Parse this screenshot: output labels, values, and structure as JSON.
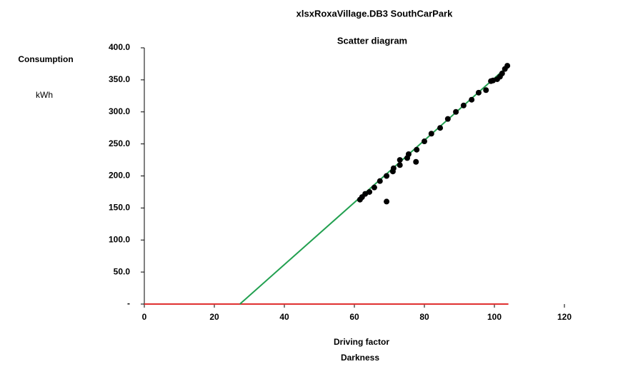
{
  "chart_data": {
    "type": "scatter",
    "title": "xlsxRoxaVillage.DB3 SouthCarPark",
    "subtitle": "Scatter diagram",
    "y_label": "Consumption",
    "y_unit": "kWh",
    "x_label": "Driving factor",
    "x_sublabel": "Darkness",
    "xlim": [
      0,
      120
    ],
    "xticks": [
      0,
      20,
      40,
      60,
      80,
      100,
      120
    ],
    "ylim": [
      0,
      400
    ],
    "yticks": [
      {
        "value": 0,
        "label": "-"
      },
      {
        "value": 50,
        "label": "50.0"
      },
      {
        "value": 100,
        "label": "100.0"
      },
      {
        "value": 150,
        "label": "150.0"
      },
      {
        "value": 200,
        "label": "200.0"
      },
      {
        "value": 250,
        "label": "250.0"
      },
      {
        "value": 300,
        "label": "300.0"
      },
      {
        "value": 350,
        "label": "350.0"
      },
      {
        "value": 400,
        "label": "400.0"
      }
    ],
    "color": "#000000",
    "x": [
      103.7,
      103,
      102.2,
      101.6,
      100.8,
      99.6,
      99,
      97.6,
      95.5,
      93.5,
      91.2,
      89,
      86.7,
      84.5,
      82,
      80,
      77.8,
      77.6,
      75.5,
      75.1,
      73,
      73,
      71.2,
      71,
      69.2,
      69.2,
      67.3,
      65.7,
      64.3,
      63.1,
      62.2,
      61.6
    ],
    "y": [
      372,
      367,
      360,
      355,
      351,
      349,
      348,
      334,
      330,
      319,
      310,
      300,
      289,
      275,
      266,
      254,
      241,
      222,
      234,
      228,
      225,
      217,
      212,
      207,
      200,
      160,
      192,
      182,
      175,
      172,
      167,
      163
    ],
    "lines": [
      {
        "color": "#e03030",
        "x": [
          0,
          104
        ],
        "y": [
          0,
          0
        ]
      },
      {
        "color": "#22a050",
        "x": [
          27.3,
          104
        ],
        "y": [
          0,
          372
        ]
      }
    ]
  }
}
